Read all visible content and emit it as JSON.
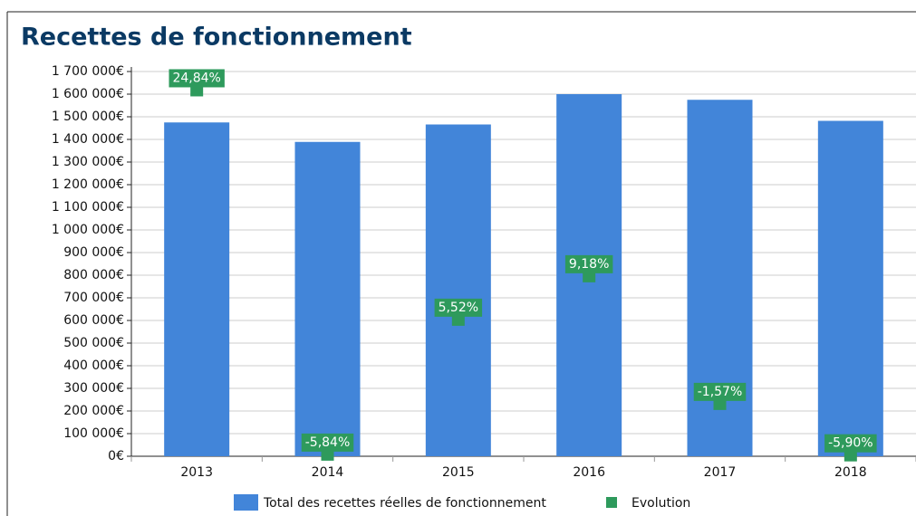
{
  "chart_data": {
    "type": "bar",
    "title": "Recettes de fonctionnement",
    "categories": [
      "2013",
      "2014",
      "2015",
      "2016",
      "2017",
      "2018"
    ],
    "series": [
      {
        "name": "Total des recettes réelles de fonctionnement",
        "color": "#4285d9",
        "values": [
          1475000,
          1389000,
          1466000,
          1600000,
          1575000,
          1482000
        ]
      },
      {
        "name": "Evolution",
        "color": "#2e9a5c",
        "axis": "y2",
        "values": [
          24.84,
          -5.84,
          5.52,
          9.18,
          -1.57,
          -5.9
        ],
        "value_labels": [
          "24,84%",
          "-5,84%",
          "5,52%",
          "9,18%",
          "-1,57%",
          "-5,90%"
        ]
      }
    ],
    "ylim": [
      0,
      1700000
    ],
    "yticks": [
      {
        "value": 0,
        "label": "0€"
      },
      {
        "value": 100000,
        "label": "100 000€"
      },
      {
        "value": 200000,
        "label": "200 000€"
      },
      {
        "value": 300000,
        "label": "300 000€"
      },
      {
        "value": 400000,
        "label": "400 000€"
      },
      {
        "value": 500000,
        "label": "500 000€"
      },
      {
        "value": 600000,
        "label": "600 000€"
      },
      {
        "value": 700000,
        "label": "700 000€"
      },
      {
        "value": 800000,
        "label": "800 000€"
      },
      {
        "value": 900000,
        "label": "900 000€"
      },
      {
        "value": 1000000,
        "label": "1 000 000€"
      },
      {
        "value": 1100000,
        "label": "1 100 000€"
      },
      {
        "value": 1200000,
        "label": "1 200 000€"
      },
      {
        "value": 1300000,
        "label": "1 300 000€"
      },
      {
        "value": 1400000,
        "label": "1 400 000€"
      },
      {
        "value": 1500000,
        "label": "1 500 000€"
      },
      {
        "value": 1600000,
        "label": "1 600 000€"
      },
      {
        "value": 1700000,
        "label": "1 700 000€"
      }
    ],
    "y2lim": [
      -6,
      26.4
    ],
    "grid": true
  }
}
